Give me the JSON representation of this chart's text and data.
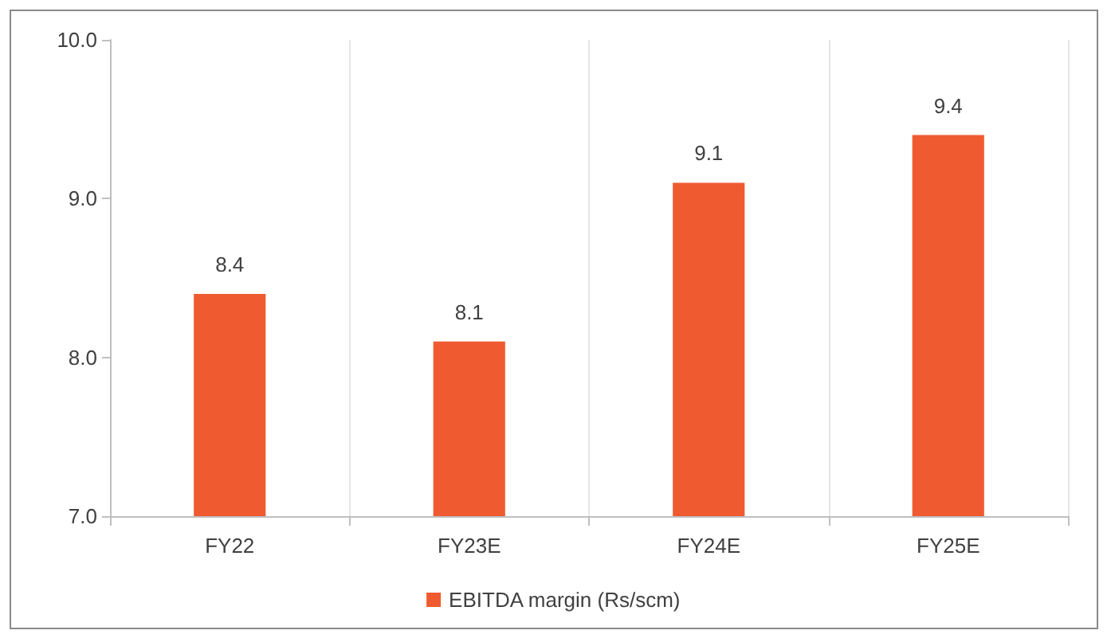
{
  "chart_data": {
    "type": "bar",
    "categories": [
      "FY22",
      "FY23E",
      "FY24E",
      "FY25E"
    ],
    "series": [
      {
        "name": "EBITDA margin (Rs/scm)",
        "color": "#f05a30",
        "values": [
          8.4,
          8.1,
          9.1,
          9.4
        ]
      }
    ],
    "ylim": [
      7,
      10
    ],
    "yticks": [
      {
        "value": 7,
        "label": "7.0"
      },
      {
        "value": 8,
        "label": "8.0"
      },
      {
        "value": 9,
        "label": "9.0"
      },
      {
        "value": 10,
        "label": "10.0"
      }
    ],
    "data_labels": true,
    "grid": "x",
    "legend": "bottom"
  }
}
